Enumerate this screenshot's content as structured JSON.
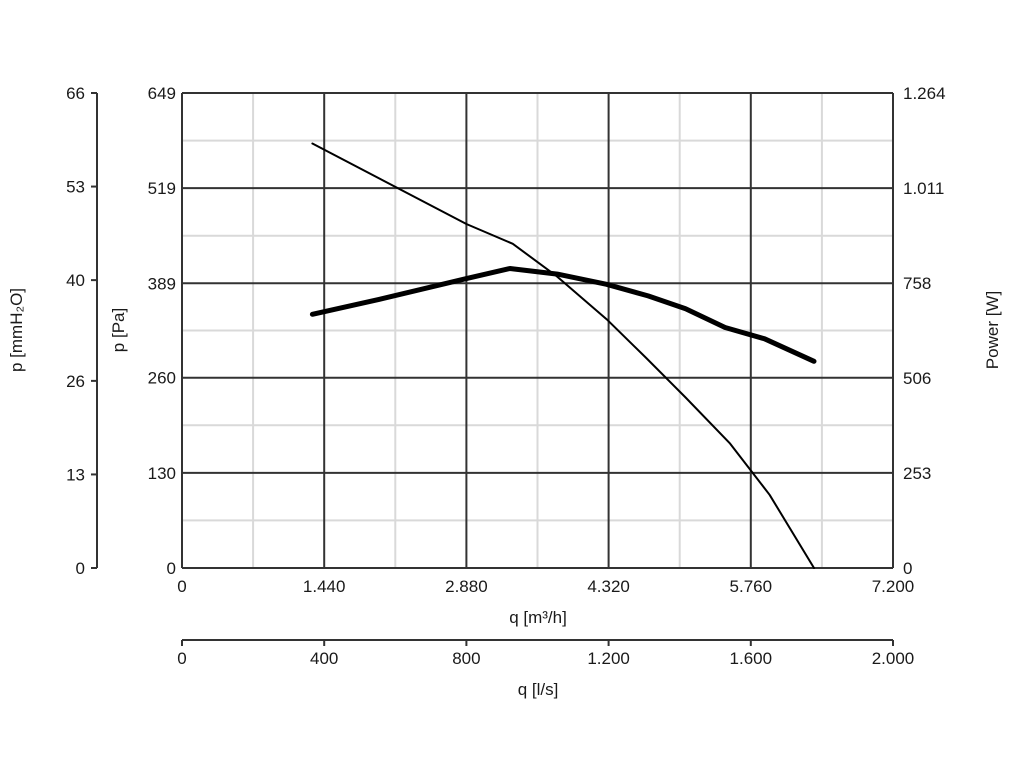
{
  "chart_data": {
    "type": "line",
    "xlabel": "q [m³/h]",
    "xlabel_secondary": "q [l/s]",
    "ylabel": "p [Pa]",
    "ylabel_secondary": "p [mmH₂O]",
    "ylabel_right": "Power [W]",
    "xlim": [
      0,
      7200
    ],
    "ylim": [
      0,
      649
    ],
    "y_right_lim": [
      0,
      1264
    ],
    "x_secondary_lim": [
      0,
      2000
    ],
    "y_secondary_lim": [
      0,
      66
    ],
    "grid": true,
    "x_major_ticks": [
      {
        "value": 0,
        "label": "0"
      },
      {
        "value": 1440,
        "label": "1.440"
      },
      {
        "value": 2880,
        "label": "2.880"
      },
      {
        "value": 4320,
        "label": "4.320"
      },
      {
        "value": 5760,
        "label": "5.760"
      },
      {
        "value": 7200,
        "label": "7.200"
      }
    ],
    "x_secondary_ticks": [
      {
        "value": 0,
        "label": "0"
      },
      {
        "value": 400,
        "label": "400"
      },
      {
        "value": 800,
        "label": "800"
      },
      {
        "value": 1200,
        "label": "1.200"
      },
      {
        "value": 1600,
        "label": "1.600"
      },
      {
        "value": 2000,
        "label": "2.000"
      }
    ],
    "y_major_ticks": [
      {
        "value": 0,
        "label": "0"
      },
      {
        "value": 130,
        "label": "130"
      },
      {
        "value": 260,
        "label": "260"
      },
      {
        "value": 389,
        "label": "389"
      },
      {
        "value": 519,
        "label": "519"
      },
      {
        "value": 649,
        "label": "649"
      }
    ],
    "y_secondary_ticks": [
      {
        "value": 0,
        "label": "0"
      },
      {
        "value": 13,
        "label": "13"
      },
      {
        "value": 26,
        "label": "26"
      },
      {
        "value": 40,
        "label": "40"
      },
      {
        "value": 53,
        "label": "53"
      },
      {
        "value": 66,
        "label": "66"
      }
    ],
    "y_right_ticks": [
      {
        "value": 0,
        "label": "0"
      },
      {
        "value": 253,
        "label": "253"
      },
      {
        "value": 506,
        "label": "506"
      },
      {
        "value": 758,
        "label": "758"
      },
      {
        "value": 1011,
        "label": "1.011"
      },
      {
        "value": 1264,
        "label": "1.264"
      }
    ],
    "series": [
      {
        "axis": "left",
        "style": "thin",
        "x": [
          1320,
          2880,
          3350,
          3800,
          4300,
          4700,
          5100,
          5550,
          5950,
          6400
        ],
        "y": [
          580,
          470,
          443,
          398,
          340,
          287,
          233,
          170,
          100,
          0
        ]
      },
      {
        "axis": "right",
        "style": "thick",
        "x": [
          1320,
          2000,
          2880,
          3320,
          3800,
          4300,
          4720,
          5100,
          5500,
          5900,
          6400
        ],
        "y": [
          675,
          715,
          770,
          797,
          782,
          755,
          724,
          690,
          640,
          610,
          550
        ]
      }
    ]
  }
}
